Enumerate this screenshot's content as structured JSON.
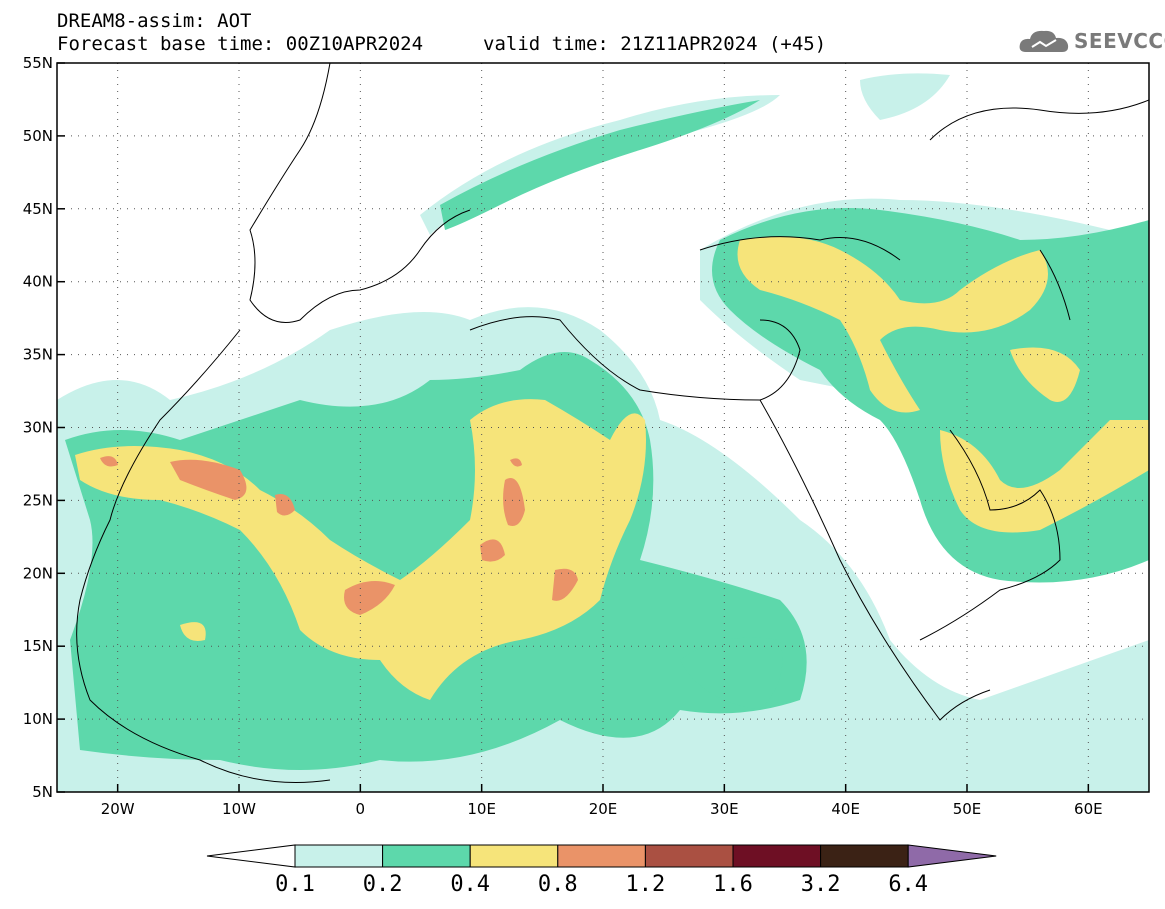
{
  "header": {
    "title": "DREAM8-assim: AOT",
    "base_time": "Forecast base time: 00Z10APR2024",
    "valid_time": "valid time: 21Z11APR2024 (+45)"
  },
  "logo": {
    "text": "SEEVCCC",
    "icon": "cloud-icon"
  },
  "map": {
    "extent": {
      "lon": [
        -25,
        65
      ],
      "lat": [
        5,
        55
      ]
    },
    "lon_ticks": [
      {
        "v": -20,
        "label": "20W"
      },
      {
        "v": -10,
        "label": "10W"
      },
      {
        "v": 0,
        "label": "0"
      },
      {
        "v": 10,
        "label": "10E"
      },
      {
        "v": 20,
        "label": "20E"
      },
      {
        "v": 30,
        "label": "30E"
      },
      {
        "v": 40,
        "label": "40E"
      },
      {
        "v": 50,
        "label": "50E"
      },
      {
        "v": 60,
        "label": "60E"
      }
    ],
    "lat_ticks": [
      {
        "v": 55,
        "label": "55N"
      },
      {
        "v": 50,
        "label": "50N"
      },
      {
        "v": 45,
        "label": "45N"
      },
      {
        "v": 40,
        "label": "40N"
      },
      {
        "v": 35,
        "label": "35N"
      },
      {
        "v": 30,
        "label": "30N"
      },
      {
        "v": 25,
        "label": "25N"
      },
      {
        "v": 20,
        "label": "20N"
      },
      {
        "v": 15,
        "label": "15N"
      },
      {
        "v": 10,
        "label": "10N"
      },
      {
        "v": 5,
        "label": "5N"
      }
    ],
    "grid": "dotted"
  },
  "colorbar": {
    "colors": [
      "#ffffff",
      "#c8f1ea",
      "#5dd8ab",
      "#f6e47a",
      "#ea9368",
      "#aa5042",
      "#6e0f24",
      "#3b2215",
      "#8f6aa8"
    ],
    "labels": [
      "0.1",
      "0.2",
      "0.4",
      "0.8",
      "1.2",
      "1.6",
      "3.2",
      "6.4"
    ]
  }
}
